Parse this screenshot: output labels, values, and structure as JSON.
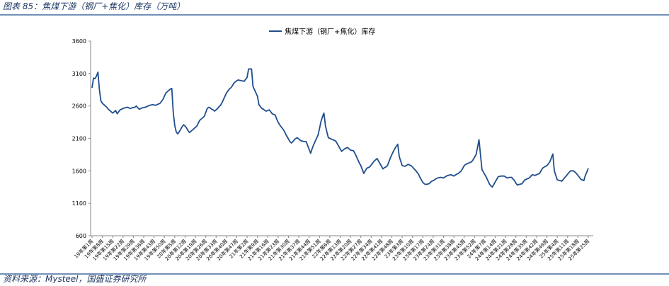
{
  "header": {
    "title": "图表 85：焦煤下游（钢厂+焦化）库存（万吨）"
  },
  "footer": {
    "source": "资料来源：Mysteel，国盛证券研究所"
  },
  "chart_data": {
    "type": "line",
    "categories": [
      "19年第1周",
      null,
      null,
      null,
      null,
      null,
      null,
      "19年第8周",
      null,
      null,
      null,
      null,
      null,
      null,
      "19年第15周",
      null,
      null,
      null,
      null,
      null,
      null,
      "19年第22周",
      null,
      null,
      null,
      null,
      null,
      null,
      "19年第29周",
      null,
      null,
      null,
      null,
      null,
      null,
      "19年第36周",
      null,
      null,
      null,
      null,
      null,
      null,
      "19年第43周",
      null,
      null,
      null,
      null,
      null,
      null,
      "19年第50周",
      null,
      null,
      null,
      null,
      null,
      null,
      "20年第5周",
      null,
      null,
      null,
      null,
      null,
      null,
      "20年第12周",
      null,
      null,
      null,
      null,
      null,
      null,
      "20年第19周",
      null,
      null,
      null,
      null,
      null,
      null,
      "20年第26周",
      null,
      null,
      null,
      null,
      null,
      null,
      "20年第33周",
      null,
      null,
      null,
      null,
      null,
      null,
      "20年第40周",
      null,
      null,
      null,
      null,
      null,
      null,
      "20年第47周",
      null,
      null,
      null,
      null,
      null,
      null,
      "21年第2周",
      null,
      null,
      null,
      null,
      null,
      null,
      "21年第9周",
      null,
      null,
      null,
      null,
      null,
      null,
      "21年第16周",
      null,
      null,
      null,
      null,
      null,
      null,
      "21年第23周",
      null,
      null,
      null,
      null,
      null,
      null,
      "21年第30周",
      null,
      null,
      null,
      null,
      null,
      null,
      "21年第37周",
      null,
      null,
      null,
      null,
      null,
      null,
      "21年第44周",
      null,
      null,
      null,
      null,
      null,
      null,
      "21年第51周",
      null,
      null,
      null,
      null,
      null,
      null,
      "22年第6周",
      null,
      null,
      null,
      null,
      null,
      null,
      "22年第13周",
      null,
      null,
      null,
      null,
      null,
      null,
      "22年第20周",
      null,
      null,
      null,
      null,
      null,
      null,
      "22年第27周",
      null,
      null,
      null,
      null,
      null,
      null,
      "22年第34周",
      null,
      null,
      null,
      null,
      null,
      null,
      "22年第41周",
      null,
      null,
      null,
      null,
      null,
      null,
      "22年第48周",
      null,
      null,
      null,
      null,
      null,
      null,
      "23年第3周",
      null,
      null,
      null,
      null,
      null,
      null,
      "23年第10周",
      null,
      null,
      null,
      null,
      null,
      null,
      "23年第17周",
      null,
      null,
      null,
      null,
      null,
      null,
      "23年第24周",
      null,
      null,
      null,
      null,
      null,
      null,
      "23年第31周",
      null,
      null,
      null,
      null,
      null,
      null,
      "23年第38周",
      null,
      null,
      null,
      null,
      null,
      null,
      "23年第45周",
      null,
      null,
      null,
      null,
      null,
      null,
      "23年第52周",
      null,
      null,
      null,
      null,
      null,
      null,
      "24年第7周",
      null,
      null,
      null,
      null,
      null,
      null,
      "24年第14周",
      null,
      null,
      null,
      null,
      null,
      null,
      "24年第21周",
      null,
      null,
      null,
      null,
      null,
      null,
      "24年第28周",
      null,
      null,
      null,
      null,
      null,
      null,
      "24年第35周",
      null,
      null,
      null,
      null,
      null,
      null,
      "24年第42周",
      null,
      null,
      null,
      null,
      null,
      null,
      "24年第49周",
      null,
      null,
      null,
      null,
      null,
      null,
      "25年第4周",
      null,
      null,
      null,
      null,
      null,
      null,
      "25年第11周",
      null,
      null,
      null,
      null,
      null,
      null,
      "25年第18周",
      null,
      null,
      null,
      null,
      null,
      null,
      "25年第25周"
    ],
    "series": [
      {
        "name": "焦煤下游（钢厂+焦化）库存",
        "color": "#1f4e8c",
        "values": [
          2880,
          3030,
          3020,
          3060,
          3120,
          2850,
          2680,
          2640,
          2620,
          2600,
          2580,
          2550,
          2530,
          2510,
          2490,
          2510,
          2530,
          2480,
          2510,
          2540,
          2550,
          2560,
          2570,
          2575,
          2580,
          2570,
          2560,
          2570,
          2575,
          2580,
          2600,
          2570,
          2550,
          2560,
          2570,
          2575,
          2580,
          2590,
          2600,
          2610,
          2615,
          2620,
          2615,
          2610,
          2620,
          2630,
          2640,
          2670,
          2700,
          2750,
          2800,
          2820,
          2840,
          2860,
          2870,
          2500,
          2300,
          2200,
          2170,
          2200,
          2240,
          2280,
          2310,
          2290,
          2260,
          2220,
          2190,
          2210,
          2230,
          2250,
          2270,
          2290,
          2340,
          2380,
          2400,
          2420,
          2440,
          2500,
          2560,
          2580,
          2570,
          2550,
          2540,
          2520,
          2540,
          2560,
          2590,
          2610,
          2650,
          2700,
          2750,
          2800,
          2830,
          2860,
          2880,
          2910,
          2950,
          2970,
          2990,
          3000,
          2995,
          2990,
          2985,
          2980,
          3010,
          3040,
          3170,
          3170,
          3170,
          2900,
          2850,
          2800,
          2750,
          2620,
          2590,
          2560,
          2550,
          2530,
          2520,
          2530,
          2540,
          2510,
          2480,
          2470,
          2460,
          2400,
          2350,
          2310,
          2280,
          2250,
          2220,
          2170,
          2130,
          2090,
          2050,
          2030,
          2050,
          2080,
          2100,
          2110,
          2090,
          2070,
          2060,
          2055,
          2050,
          2050,
          1990,
          1930,
          1870,
          1940,
          2000,
          2050,
          2100,
          2150,
          2250,
          2360,
          2430,
          2490,
          2300,
          2200,
          2110,
          2100,
          2090,
          2080,
          2070,
          2060,
          2020,
          1980,
          1940,
          1900,
          1920,
          1940,
          1950,
          1960,
          1940,
          1920,
          1915,
          1910,
          1870,
          1820,
          1770,
          1720,
          1680,
          1620,
          1560,
          1600,
          1640,
          1650,
          1660,
          1690,
          1720,
          1750,
          1770,
          1790,
          1750,
          1710,
          1670,
          1630,
          1650,
          1660,
          1680,
          1740,
          1800,
          1850,
          1900,
          1940,
          1980,
          2010,
          1820,
          1750,
          1680,
          1675,
          1670,
          1685,
          1700,
          1690,
          1680,
          1660,
          1630,
          1610,
          1580,
          1550,
          1500,
          1460,
          1420,
          1400,
          1390,
          1395,
          1400,
          1420,
          1440,
          1450,
          1465,
          1480,
          1490,
          1495,
          1500,
          1495,
          1490,
          1505,
          1520,
          1530,
          1535,
          1540,
          1530,
          1520,
          1535,
          1550,
          1560,
          1580,
          1600,
          1640,
          1680,
          1700,
          1710,
          1720,
          1730,
          1740,
          1770,
          1810,
          1850,
          1960,
          2080,
          1850,
          1620,
          1580,
          1540,
          1500,
          1450,
          1400,
          1370,
          1350,
          1390,
          1430,
          1470,
          1510,
          1515,
          1520,
          1520,
          1520,
          1505,
          1490,
          1495,
          1500,
          1500,
          1475,
          1450,
          1410,
          1380,
          1390,
          1395,
          1400,
          1430,
          1460,
          1470,
          1480,
          1490,
          1515,
          1540,
          1535,
          1530,
          1540,
          1550,
          1560,
          1600,
          1640,
          1655,
          1670,
          1680,
          1710,
          1740,
          1800,
          1860,
          1600,
          1530,
          1460,
          1455,
          1450,
          1440,
          1465,
          1495,
          1520,
          1550,
          1575,
          1600,
          1600,
          1600,
          1580,
          1560,
          1530,
          1500,
          1470,
          1460,
          1450,
          1530,
          1580,
          1640
        ]
      }
    ],
    "ylim": [
      600,
      3600
    ],
    "yticks": [
      600,
      1100,
      1600,
      2100,
      2600,
      3100,
      3600
    ],
    "grid": false,
    "legend": "top"
  }
}
